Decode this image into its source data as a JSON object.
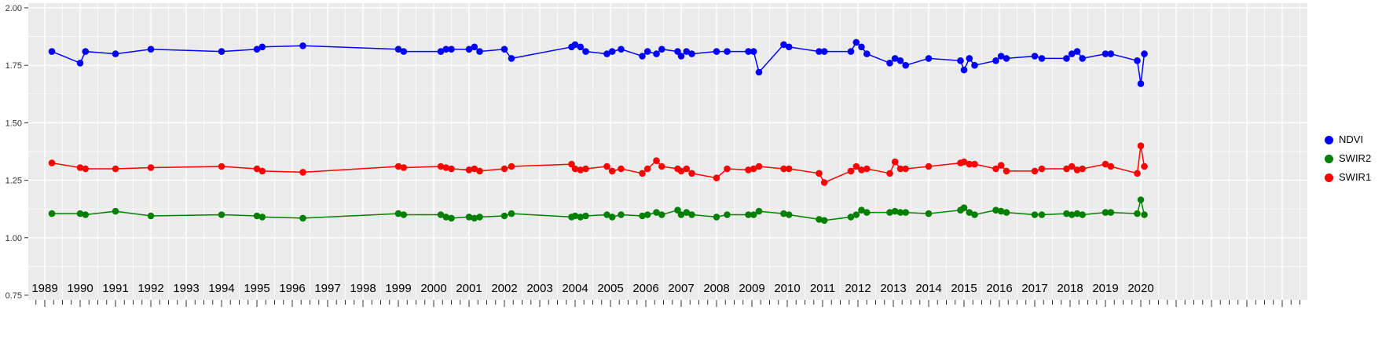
{
  "chart_data": {
    "type": "scatter",
    "title": "",
    "xlabel": "",
    "ylabel": "",
    "grid": true,
    "legend_position": "right",
    "panel_background": "#EBEBEB",
    "gridline_color": "#FFFFFF",
    "xlim": [
      1988.53,
      2024.7
    ],
    "ylim": [
      0.75,
      2.0
    ],
    "y_ticks": [
      0.75,
      1.0,
      1.25,
      1.5,
      1.75,
      2.0
    ],
    "y_tick_labels": [
      "0.75",
      "1.00",
      "1.25",
      "1.50",
      "1.75",
      "2.00"
    ],
    "x_tick_years": [
      1989,
      1990,
      1991,
      1992,
      1993,
      1994,
      1995,
      1996,
      1997,
      1998,
      1999,
      2000,
      2001,
      2002,
      2003,
      2004,
      2005,
      2006,
      2007,
      2008,
      2009,
      2010,
      2011,
      2012,
      2013,
      2014,
      2015,
      2016,
      2017,
      2018,
      2019,
      2020
    ],
    "x_tick_labels": [
      "1989",
      "1990",
      "1991",
      "1992",
      "1993",
      "1994",
      "1995",
      "1996",
      "1997",
      "1998",
      "1999",
      "2000",
      "2001",
      "2002",
      "2003",
      "2004",
      "2005",
      "2006",
      "2007",
      "2008",
      "2009",
      "2010",
      "2011",
      "2012",
      "2013",
      "2014",
      "2015",
      "2016",
      "2017",
      "2018",
      "2019",
      "2020"
    ],
    "x": [
      1989.2,
      1990.0,
      1990.15,
      1991.0,
      1992.0,
      1994.0,
      1995.0,
      1995.15,
      1996.3,
      1999.0,
      1999.15,
      2000.2,
      2000.35,
      2000.5,
      2001.0,
      2001.15,
      2001.3,
      2002.0,
      2002.2,
      2003.9,
      2004.0,
      2004.15,
      2004.3,
      2004.9,
      2005.05,
      2005.3,
      2005.9,
      2006.05,
      2006.3,
      2006.45,
      2006.9,
      2007.0,
      2007.15,
      2007.3,
      2008.0,
      2008.3,
      2008.9,
      2009.05,
      2009.2,
      2009.9,
      2010.05,
      2010.9,
      2011.05,
      2011.8,
      2011.95,
      2012.1,
      2012.25,
      2012.9,
      2013.05,
      2013.2,
      2013.35,
      2014.0,
      2014.9,
      2015.0,
      2015.15,
      2015.3,
      2015.9,
      2016.05,
      2016.2,
      2017.0,
      2017.2,
      2017.9,
      2018.05,
      2018.2,
      2018.35,
      2019.0,
      2019.15,
      2019.9,
      2020.0,
      2020.1
    ],
    "series": [
      {
        "name": "NDVI",
        "color": "#0000FF",
        "values": [
          1.81,
          1.76,
          1.81,
          1.8,
          1.82,
          1.81,
          1.82,
          1.83,
          1.835,
          1.82,
          1.81,
          1.81,
          1.82,
          1.82,
          1.82,
          1.83,
          1.81,
          1.82,
          1.78,
          1.83,
          1.84,
          1.83,
          1.81,
          1.8,
          1.81,
          1.82,
          1.79,
          1.81,
          1.8,
          1.82,
          1.81,
          1.79,
          1.81,
          1.8,
          1.81,
          1.81,
          1.81,
          1.81,
          1.72,
          1.84,
          1.83,
          1.81,
          1.81,
          1.81,
          1.85,
          1.83,
          1.8,
          1.76,
          1.78,
          1.77,
          1.75,
          1.78,
          1.77,
          1.73,
          1.78,
          1.75,
          1.77,
          1.79,
          1.78,
          1.79,
          1.78,
          1.78,
          1.8,
          1.81,
          1.78,
          1.8,
          1.8,
          1.77,
          1.67,
          1.8
        ]
      },
      {
        "name": "SWIR2",
        "color": "#008000",
        "values": [
          1.105,
          1.105,
          1.1,
          1.115,
          1.095,
          1.1,
          1.095,
          1.09,
          1.085,
          1.105,
          1.1,
          1.1,
          1.09,
          1.085,
          1.09,
          1.085,
          1.09,
          1.095,
          1.105,
          1.09,
          1.095,
          1.09,
          1.095,
          1.1,
          1.09,
          1.1,
          1.095,
          1.1,
          1.11,
          1.1,
          1.12,
          1.1,
          1.11,
          1.1,
          1.09,
          1.1,
          1.1,
          1.1,
          1.115,
          1.105,
          1.1,
          1.08,
          1.075,
          1.09,
          1.1,
          1.12,
          1.11,
          1.11,
          1.115,
          1.11,
          1.11,
          1.105,
          1.12,
          1.13,
          1.11,
          1.1,
          1.12,
          1.115,
          1.11,
          1.1,
          1.1,
          1.105,
          1.1,
          1.105,
          1.1,
          1.11,
          1.11,
          1.105,
          1.165,
          1.1
        ]
      },
      {
        "name": "SWIR1",
        "color": "#FF0000",
        "values": [
          1.325,
          1.305,
          1.3,
          1.3,
          1.305,
          1.31,
          1.3,
          1.29,
          1.285,
          1.31,
          1.305,
          1.31,
          1.305,
          1.3,
          1.295,
          1.3,
          1.29,
          1.3,
          1.31,
          1.32,
          1.3,
          1.295,
          1.3,
          1.31,
          1.29,
          1.3,
          1.28,
          1.3,
          1.335,
          1.31,
          1.3,
          1.29,
          1.3,
          1.28,
          1.26,
          1.3,
          1.295,
          1.3,
          1.31,
          1.3,
          1.3,
          1.28,
          1.24,
          1.29,
          1.31,
          1.295,
          1.3,
          1.28,
          1.33,
          1.3,
          1.3,
          1.31,
          1.325,
          1.33,
          1.32,
          1.32,
          1.3,
          1.315,
          1.29,
          1.29,
          1.3,
          1.3,
          1.31,
          1.295,
          1.3,
          1.32,
          1.31,
          1.28,
          1.4,
          1.31
        ]
      }
    ]
  }
}
